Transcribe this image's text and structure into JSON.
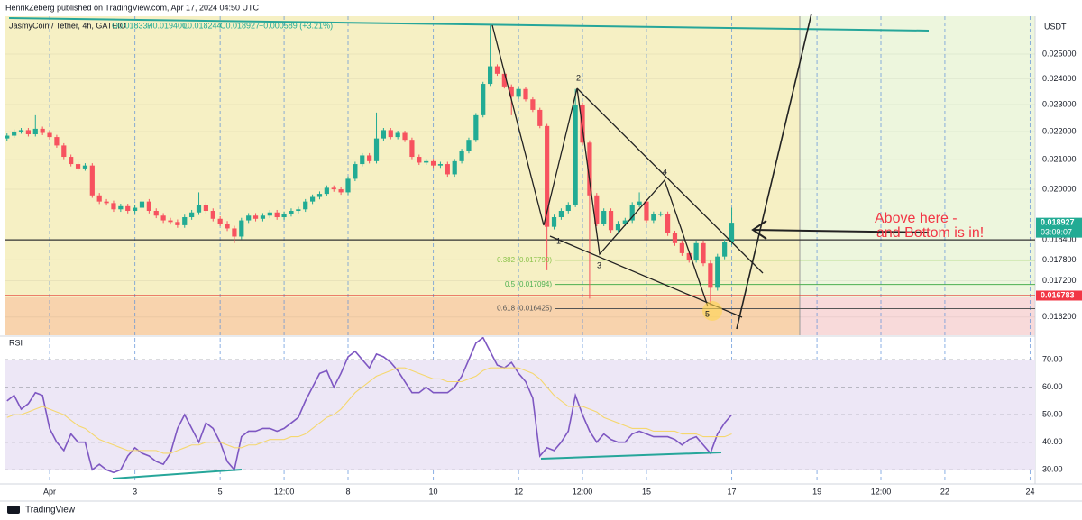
{
  "header": {
    "published": "HenrikZeberg published on TradingView.com, Apr 17, 2024 04:50 UTC"
  },
  "footer": {
    "brand": "TradingView"
  },
  "annotation": {
    "line1": "Above here -",
    "line2": "and Bottom is in!"
  },
  "waves": [
    "1",
    "2",
    "3",
    "4",
    "5"
  ],
  "chart_data": [
    {
      "type": "candlestick",
      "currency": "USDT",
      "log_scale": true,
      "legend": {
        "symbol": "JasmyCoin / Tether, 4h, GATEIO",
        "open": "O0.018337",
        "high": "H0.019400",
        "low": "L0.018244",
        "close": "C0.018927",
        "change": "+0.000589 (+3.21%)"
      },
      "up_color": "#22ab94",
      "down_color": "#f7525f",
      "xlim": [
        -25.4,
        554.8
      ],
      "ylim": [
        0.02661,
        0.01572
      ],
      "yticks": [
        {
          "value": 0.025,
          "label": "0.025000"
        },
        {
          "value": 0.024,
          "label": "0.024000"
        },
        {
          "value": 0.023,
          "label": "0.023000"
        },
        {
          "value": 0.022,
          "label": "0.022000"
        },
        {
          "value": 0.021,
          "label": "0.021000"
        },
        {
          "value": 0.02,
          "label": "0.020000"
        },
        {
          "value": 0.0184,
          "label": "0.018400"
        },
        {
          "value": 0.0178,
          "label": "0.017800"
        },
        {
          "value": 0.0172,
          "label": "0.017200"
        },
        {
          "value": 0.0162,
          "label": "0.016200"
        }
      ],
      "x": [
        -24,
        -20,
        -16,
        -12,
        -8,
        -4,
        0,
        4,
        8,
        12,
        16,
        20,
        24,
        28,
        32,
        36,
        40,
        44,
        48,
        52,
        56,
        60,
        64,
        68,
        72,
        76,
        80,
        84,
        88,
        92,
        96,
        100,
        104,
        108,
        112,
        116,
        120,
        124,
        128,
        132,
        136,
        140,
        144,
        148,
        152,
        156,
        160,
        164,
        168,
        172,
        176,
        180,
        184,
        188,
        192,
        196,
        200,
        204,
        208,
        212,
        216,
        220,
        224,
        228,
        232,
        236,
        240,
        244,
        248,
        252,
        256,
        260,
        264,
        268,
        272,
        276,
        280,
        284,
        288,
        292,
        296,
        300,
        304,
        308,
        312,
        316,
        320,
        324,
        328,
        332,
        336,
        340,
        344,
        348,
        352,
        356,
        360,
        364,
        368,
        372,
        376,
        380,
        384
      ],
      "open": [
        0.02175,
        0.02185,
        0.022,
        0.02205,
        0.0219,
        0.0221,
        0.02195,
        0.0218,
        0.0215,
        0.0211,
        0.02085,
        0.0207,
        0.0208,
        0.0198,
        0.0196,
        0.01955,
        0.01935,
        0.01945,
        0.0193,
        0.0194,
        0.0196,
        0.0193,
        0.01915,
        0.019,
        0.01895,
        0.01885,
        0.0191,
        0.01925,
        0.0195,
        0.0193,
        0.01905,
        0.0189,
        0.01875,
        0.0185,
        0.019,
        0.01915,
        0.01905,
        0.01915,
        0.01925,
        0.0191,
        0.0192,
        0.0193,
        0.01935,
        0.0196,
        0.01975,
        0.01985,
        0.02005,
        0.02,
        0.0199,
        0.02035,
        0.02085,
        0.02115,
        0.02095,
        0.02175,
        0.02205,
        0.0218,
        0.02195,
        0.0217,
        0.0211,
        0.0209,
        0.02095,
        0.0208,
        0.02085,
        0.0205,
        0.02095,
        0.0213,
        0.0217,
        0.0226,
        0.0238,
        0.0245,
        0.0242,
        0.0237,
        0.0233,
        0.0236,
        0.0232,
        0.0228,
        0.0222,
        0.0188,
        0.0191,
        0.0193,
        0.0195,
        0.023,
        0.0216,
        0.0198,
        0.0189,
        0.0193,
        0.0187,
        0.0189,
        0.019,
        0.0195,
        0.0196,
        0.019,
        0.0192,
        0.0192,
        0.0186,
        0.0183,
        0.018,
        0.0178,
        0.0183,
        0.0177,
        0.017,
        0.0179,
        0.018337
      ],
      "high": [
        0.02193,
        0.02208,
        0.02213,
        0.02213,
        0.0226,
        0.02218,
        0.02203,
        0.02188,
        0.02158,
        0.02118,
        0.02093,
        0.02088,
        0.02088,
        0.01988,
        0.01968,
        0.01963,
        0.01953,
        0.01953,
        0.01948,
        0.01968,
        0.01968,
        0.01938,
        0.01923,
        0.01908,
        0.01903,
        0.01918,
        0.01933,
        0.0199,
        0.01958,
        0.01938,
        0.01913,
        0.01898,
        0.01883,
        0.01908,
        0.01923,
        0.01923,
        0.01923,
        0.01933,
        0.01933,
        0.01928,
        0.01938,
        0.01943,
        0.01968,
        0.01983,
        0.01993,
        0.02013,
        0.02013,
        0.02008,
        0.02043,
        0.02093,
        0.02123,
        0.02123,
        0.0227,
        0.02213,
        0.02213,
        0.02203,
        0.02203,
        0.02178,
        0.02118,
        0.02103,
        0.02103,
        0.02093,
        0.02093,
        0.02103,
        0.02138,
        0.02178,
        0.02268,
        0.02388,
        0.0262,
        0.02458,
        0.02428,
        0.02378,
        0.02368,
        0.02368,
        0.02328,
        0.02288,
        0.02228,
        0.01918,
        0.01938,
        0.01958,
        0.0236,
        0.02308,
        0.02168,
        0.01988,
        0.01938,
        0.01938,
        0.01898,
        0.01908,
        0.01958,
        0.0199,
        0.01968,
        0.01928,
        0.01928,
        0.01928,
        0.01868,
        0.01838,
        0.01808,
        0.01838,
        0.01838,
        0.01778,
        0.01798,
        0.01842,
        0.0194
      ],
      "low": [
        0.02167,
        0.02177,
        0.02192,
        0.02182,
        0.02182,
        0.02187,
        0.02172,
        0.02142,
        0.02102,
        0.02077,
        0.02062,
        0.02062,
        0.01972,
        0.01952,
        0.01947,
        0.01927,
        0.01927,
        0.01922,
        0.01922,
        0.01932,
        0.01922,
        0.01907,
        0.01892,
        0.01887,
        0.01877,
        0.01877,
        0.01902,
        0.01917,
        0.01922,
        0.01897,
        0.01882,
        0.01867,
        0.0183,
        0.01842,
        0.01892,
        0.01897,
        0.01897,
        0.01907,
        0.01902,
        0.01902,
        0.01912,
        0.01922,
        0.01927,
        0.01952,
        0.01967,
        0.01977,
        0.01992,
        0.01982,
        0.01982,
        0.02027,
        0.02077,
        0.02087,
        0.02087,
        0.02167,
        0.02172,
        0.02172,
        0.02162,
        0.02102,
        0.02082,
        0.02082,
        0.02072,
        0.02072,
        0.02042,
        0.02042,
        0.02087,
        0.02122,
        0.02162,
        0.02252,
        0.02372,
        0.02412,
        0.02362,
        0.0226,
        0.02322,
        0.02312,
        0.02272,
        0.02212,
        0.0175,
        0.01872,
        0.01902,
        0.01922,
        0.01942,
        0.02152,
        0.0167,
        0.01882,
        0.01882,
        0.01862,
        0.01862,
        0.01882,
        0.01892,
        0.01942,
        0.01892,
        0.01892,
        0.01912,
        0.01852,
        0.01822,
        0.01792,
        0.01772,
        0.01772,
        0.01762,
        0.0165,
        0.01692,
        0.01782,
        0.018244
      ],
      "close": [
        0.02185,
        0.022,
        0.02205,
        0.0219,
        0.0221,
        0.02195,
        0.0218,
        0.0215,
        0.0211,
        0.02085,
        0.0207,
        0.0208,
        0.0198,
        0.0196,
        0.01955,
        0.01935,
        0.01945,
        0.0193,
        0.0194,
        0.0196,
        0.0193,
        0.01915,
        0.019,
        0.01895,
        0.01885,
        0.0191,
        0.01925,
        0.0195,
        0.0193,
        0.01905,
        0.0189,
        0.01875,
        0.0185,
        0.019,
        0.01915,
        0.01905,
        0.01915,
        0.01925,
        0.0191,
        0.0192,
        0.0193,
        0.01935,
        0.0196,
        0.01975,
        0.01985,
        0.02005,
        0.02,
        0.0199,
        0.02035,
        0.02085,
        0.02115,
        0.02095,
        0.02175,
        0.02205,
        0.0218,
        0.02195,
        0.0217,
        0.0211,
        0.0209,
        0.02095,
        0.0208,
        0.02085,
        0.0205,
        0.02095,
        0.0213,
        0.0217,
        0.0226,
        0.0238,
        0.0245,
        0.0242,
        0.0237,
        0.0233,
        0.0236,
        0.0232,
        0.0228,
        0.0222,
        0.0188,
        0.0191,
        0.0193,
        0.0195,
        0.023,
        0.0216,
        0.0198,
        0.0189,
        0.0193,
        0.0187,
        0.0189,
        0.019,
        0.0195,
        0.0196,
        0.019,
        0.0192,
        0.0192,
        0.0186,
        0.0183,
        0.018,
        0.0178,
        0.0183,
        0.0177,
        0.017,
        0.0179,
        0.018337,
        0.018927
      ],
      "lines": [
        {
          "value": 0.0184,
          "color": "#333333"
        },
        {
          "value": 0.016783,
          "color": "#e53935"
        }
      ],
      "fib": [
        {
          "value": 0.01779,
          "label": "0.382 (0.017790)",
          "color": "#8bc34a"
        },
        {
          "value": 0.017094,
          "label": "0.5 (0.017094)",
          "color": "#4caf50"
        },
        {
          "value": 0.016425,
          "label": "0.618 (0.016425)",
          "color": "#555555"
        }
      ],
      "price_tags": [
        {
          "value": 0.018927,
          "label": "0.018927",
          "sub": "03:09:07",
          "color": "#22ab94"
        },
        {
          "value": 0.016783,
          "label": "0.016783",
          "color": "#f23645"
        }
      ]
    },
    {
      "type": "line",
      "title": "RSI",
      "xlim": [
        -25.4,
        554.8
      ],
      "ylim": [
        25.5,
        78.2
      ],
      "yticks": [
        {
          "value": 70,
          "label": "70.00"
        },
        {
          "value": 60,
          "label": "60.00"
        },
        {
          "value": 50,
          "label": "50.00"
        },
        {
          "value": 40,
          "label": "40.00"
        },
        {
          "value": 30,
          "label": "30.00"
        }
      ],
      "xticks": [
        {
          "value": 0,
          "label": "Apr"
        },
        {
          "value": 48,
          "label": "3"
        },
        {
          "value": 96,
          "label": "5"
        },
        {
          "value": 132,
          "label": "12:00"
        },
        {
          "value": 168,
          "label": "8"
        },
        {
          "value": 216,
          "label": "10"
        },
        {
          "value": 264,
          "label": "12"
        },
        {
          "value": 300,
          "label": "12:00"
        },
        {
          "value": 336,
          "label": "15"
        },
        {
          "value": 384,
          "label": "17"
        },
        {
          "value": 432,
          "label": "19"
        },
        {
          "value": 468,
          "label": "12:00"
        },
        {
          "value": 504,
          "label": "22"
        },
        {
          "value": 552,
          "label": "24"
        }
      ],
      "x": [
        -24,
        -20,
        -16,
        -12,
        -8,
        -4,
        0,
        4,
        8,
        12,
        16,
        20,
        24,
        28,
        32,
        36,
        40,
        44,
        48,
        52,
        56,
        60,
        64,
        68,
        72,
        76,
        80,
        84,
        88,
        92,
        96,
        100,
        104,
        108,
        112,
        116,
        120,
        124,
        128,
        132,
        136,
        140,
        144,
        148,
        152,
        156,
        160,
        164,
        168,
        172,
        176,
        180,
        184,
        188,
        192,
        196,
        200,
        204,
        208,
        212,
        216,
        220,
        224,
        228,
        232,
        236,
        240,
        244,
        248,
        252,
        256,
        260,
        264,
        268,
        272,
        276,
        280,
        284,
        288,
        292,
        296,
        300,
        304,
        308,
        312,
        316,
        320,
        324,
        328,
        332,
        336,
        340,
        344,
        348,
        352,
        356,
        360,
        364,
        368,
        372,
        376,
        380,
        384
      ],
      "series": [
        {
          "color": "#7e57c2",
          "values": [
            55,
            57,
            52,
            54,
            58,
            57,
            45,
            40,
            37,
            43,
            40,
            40,
            30,
            32,
            30,
            29,
            30,
            35,
            38,
            36,
            35,
            33,
            32,
            36,
            45,
            50,
            45,
            40,
            47,
            45,
            40,
            33,
            30,
            42,
            44,
            44,
            45,
            45,
            44,
            45,
            47,
            49,
            55,
            60,
            65,
            66,
            60,
            65,
            71,
            73,
            70,
            67,
            72,
            71,
            69,
            66,
            62,
            58,
            58,
            60,
            58,
            58,
            58,
            60,
            64,
            70,
            76,
            78,
            73,
            68,
            67,
            69,
            65,
            62,
            56,
            35,
            38,
            37,
            40,
            44,
            57,
            50,
            44,
            40,
            43,
            41,
            40,
            40,
            43,
            44,
            43,
            42,
            42,
            42,
            41,
            39,
            41,
            42,
            39,
            36,
            43,
            47,
            50
          ]
        },
        {
          "color": "#f5d76e",
          "values": [
            49,
            50,
            50,
            51,
            52,
            53,
            52,
            51,
            50,
            48,
            46,
            45,
            43,
            41,
            40,
            39,
            38,
            37,
            37,
            37,
            37,
            37,
            36,
            36,
            37,
            38,
            39,
            39,
            40,
            40,
            40,
            39,
            38,
            38,
            39,
            39,
            40,
            41,
            41,
            41,
            42,
            42,
            43,
            45,
            47,
            49,
            50,
            52,
            55,
            58,
            60,
            62,
            64,
            65,
            66,
            67,
            67,
            66,
            65,
            64,
            63,
            63,
            62,
            62,
            62,
            63,
            64,
            66,
            67,
            67,
            67,
            67,
            67,
            66,
            65,
            63,
            60,
            57,
            55,
            53,
            53,
            53,
            52,
            51,
            49,
            48,
            47,
            46,
            45,
            45,
            45,
            44,
            44,
            44,
            44,
            43,
            43,
            43,
            42,
            42,
            42,
            42,
            43
          ]
        }
      ]
    }
  ]
}
